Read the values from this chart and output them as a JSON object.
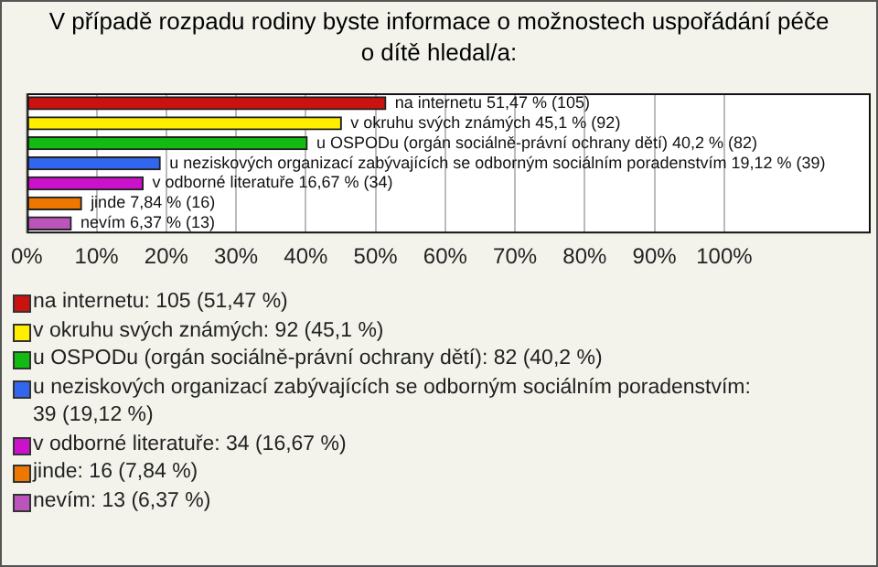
{
  "chart_data": {
    "type": "bar",
    "orientation": "horizontal",
    "title": "V případě rozpadu rodiny byste informace o možnostech uspořádání péče o dítě hledal/a:",
    "categories": [
      "na internetu",
      "v okruhu svých známých",
      "u OSPODu (orgán sociálně-právní ochrany dětí)",
      "u neziskových organizací zabývajících se odborným sociálním poradenstvím",
      "v odborné literatuře",
      "jinde",
      "nevím"
    ],
    "values": [
      51.47,
      45.1,
      40.2,
      19.12,
      16.67,
      7.84,
      6.37
    ],
    "colors": [
      "#cc1111",
      "#ffee00",
      "#11bb11",
      "#3366ee",
      "#cc11cc",
      "#ee7700",
      "#bb55bb"
    ],
    "value_labels": [
      "51,47 % (105)",
      "45,1 % (92)",
      "40,2 % (82)",
      "19,12 % (39)",
      "16,67 % (34)",
      "7,84 % (16)",
      "6,37 % (13)"
    ],
    "xlim": [
      0,
      121
    ],
    "xticks": [
      {
        "value": 0,
        "label": "0%"
      },
      {
        "value": 10,
        "label": "10%"
      },
      {
        "value": 20,
        "label": "20%"
      },
      {
        "value": 30,
        "label": "30%"
      },
      {
        "value": 40,
        "label": "40%"
      },
      {
        "value": 50,
        "label": "50%"
      },
      {
        "value": 60,
        "label": "60%"
      },
      {
        "value": 70,
        "label": "70%"
      },
      {
        "value": 80,
        "label": "80%"
      },
      {
        "value": 90,
        "label": "90%"
      },
      {
        "value": 100,
        "label": "100%"
      }
    ],
    "grid": "x",
    "tick_labels": "x",
    "annotations": [
      "na internetu: 105 (51,47 %)",
      "v okruhu svých známých: 92 (45,1 %)",
      "u OSPODu (orgán sociálně-právní ochrany dětí): 82 (40,2 %)",
      "u neziskových organizací zabývajících se odborným sociálním poradenstvím: 39 (19,12 %)",
      "v odborné literatuře: 34 (16,67 %)",
      "jinde: 16 (7,84 %)",
      "nevím: 13 (6,37 %)"
    ]
  }
}
